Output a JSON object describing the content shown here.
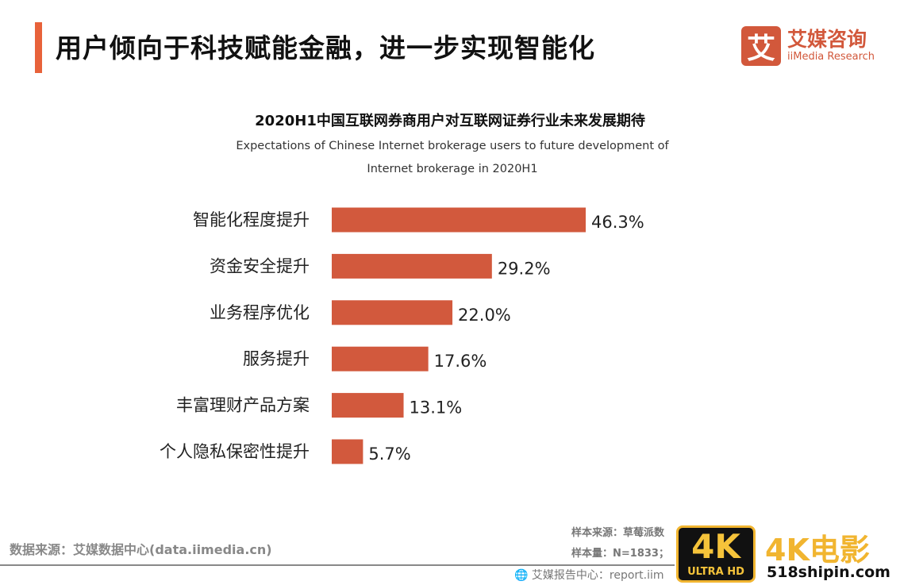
{
  "header": {
    "title": "用户倾向于科技赋能金融，进一步实现智能化",
    "logo_glyph": "艾",
    "logo_cn": "艾媒咨询",
    "logo_en": "iiMedia Research"
  },
  "chart_data": {
    "type": "bar",
    "orientation": "horizontal",
    "title": "2020H1中国互联网券商用户对互联网证券行业未来发展期待",
    "subtitle_line1": "Expectations of Chinese Internet brokerage users to future development of",
    "subtitle_line2": "Internet brokerage in 2020H1",
    "categories": [
      "智能化程度提升",
      "资金安全提升",
      "业务程序优化",
      "服务提升",
      "丰富理财产品方案",
      "个人隐私保密性提升"
    ],
    "values": [
      46.3,
      29.2,
      22.0,
      17.6,
      13.1,
      5.7
    ],
    "labels": [
      "46.3%",
      "29.2%",
      "22.0%",
      "17.6%",
      "13.1%",
      "5.7%"
    ],
    "unit": "%",
    "xlim": [
      0,
      50
    ],
    "grid": false,
    "legend": "none",
    "color": "#d2593d"
  },
  "footer": {
    "source": "数据来源：艾媒数据中心(data.iimedia.cn)",
    "sample_source": "样本来源：草莓派数",
    "sample_size": "样本量：N=1833；",
    "report": "艾媒报告中心：report.iim"
  },
  "watermark": {
    "badge_top": "4K",
    "badge_bottom": "ULTRA HD",
    "brand": "4K电影",
    "url": "518shipin.com"
  }
}
